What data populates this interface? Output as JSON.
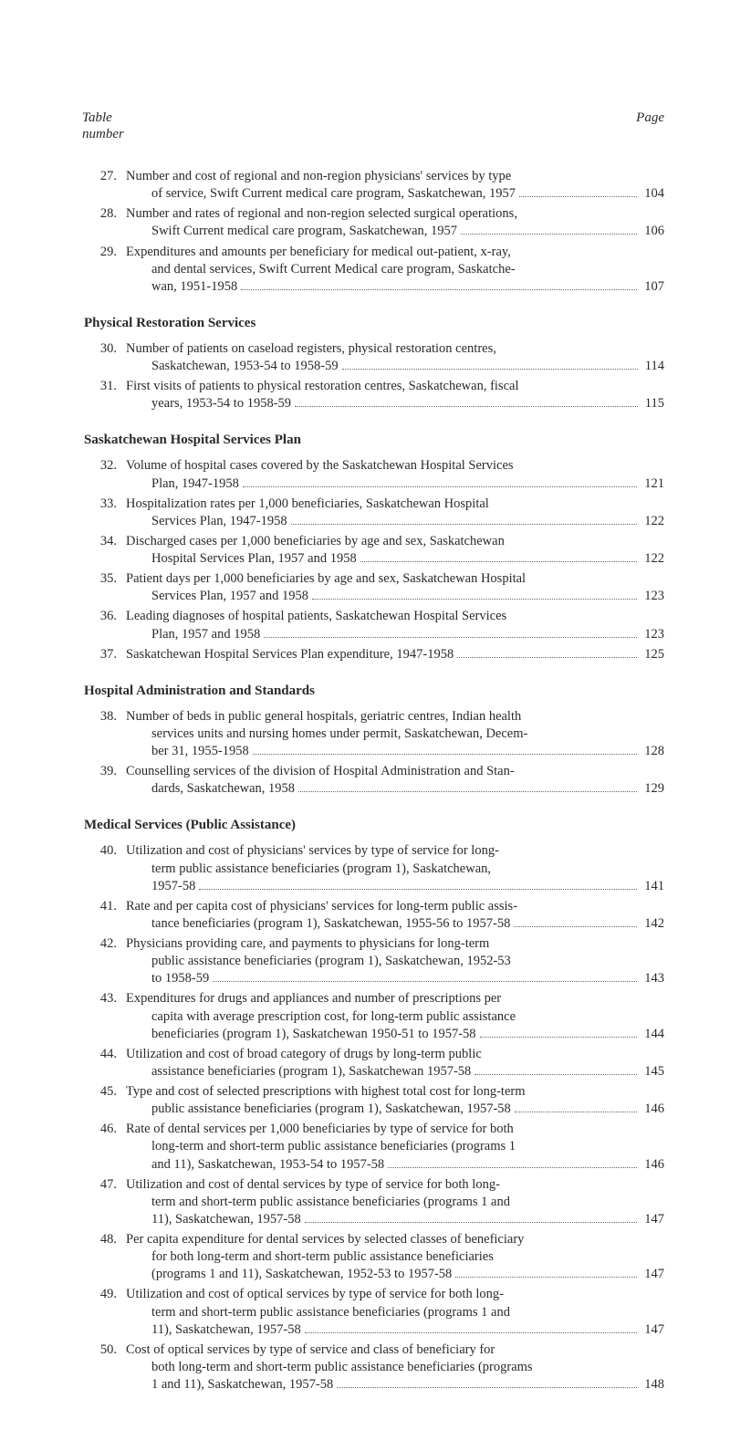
{
  "header": {
    "left_top": "Table",
    "left_bottom": "number",
    "right": "Page"
  },
  "sections": [
    {
      "heading": null,
      "entries": [
        {
          "num": "27.",
          "lines": [
            "Number and cost of regional and non-region physicians' services by type",
            "of service, Swift Current medical care program, Saskatchewan, 1957"
          ],
          "page": "104"
        },
        {
          "num": "28.",
          "lines": [
            "Number and rates of regional and non-region selected surgical operations,",
            "Swift Current medical care program, Saskatchewan, 1957"
          ],
          "page": "106"
        },
        {
          "num": "29.",
          "lines": [
            "Expenditures and amounts per beneficiary for medical out-patient, x-ray,",
            "and dental services, Swift Current Medical care program, Saskatche-",
            "wan, 1951-1958"
          ],
          "page": "107"
        }
      ]
    },
    {
      "heading": "Physical Restoration Services",
      "entries": [
        {
          "num": "30.",
          "lines": [
            "Number of patients on caseload registers, physical restoration centres,",
            "Saskatchewan, 1953-54 to 1958-59"
          ],
          "page": "114"
        },
        {
          "num": "31.",
          "lines": [
            "First visits of patients to physical restoration centres, Saskatchewan, fiscal",
            "years, 1953-54 to 1958-59"
          ],
          "page": "115"
        }
      ]
    },
    {
      "heading": "Saskatchewan Hospital Services Plan",
      "entries": [
        {
          "num": "32.",
          "lines": [
            "Volume of hospital cases covered by the Saskatchewan Hospital Services",
            "Plan, 1947-1958"
          ],
          "page": "121"
        },
        {
          "num": "33.",
          "lines": [
            "Hospitalization rates per 1,000 beneficiaries, Saskatchewan Hospital",
            "Services Plan, 1947-1958"
          ],
          "page": "122"
        },
        {
          "num": "34.",
          "lines": [
            "Discharged cases per 1,000 beneficiaries by age and sex, Saskatchewan",
            "Hospital Services Plan, 1957 and 1958"
          ],
          "page": "122"
        },
        {
          "num": "35.",
          "lines": [
            "Patient days per 1,000 beneficiaries by age and sex, Saskatchewan Hospital",
            "Services Plan, 1957 and 1958"
          ],
          "page": "123"
        },
        {
          "num": "36.",
          "lines": [
            "Leading diagnoses of hospital patients, Saskatchewan Hospital Services",
            "Plan, 1957 and 1958"
          ],
          "page": "123"
        },
        {
          "num": "37.",
          "lines": [
            "Saskatchewan Hospital Services Plan expenditure, 1947-1958"
          ],
          "page": "125"
        }
      ]
    },
    {
      "heading": "Hospital Administration and Standards",
      "entries": [
        {
          "num": "38.",
          "lines": [
            "Number of beds in public general hospitals, geriatric centres, Indian health",
            "services units and nursing homes under permit, Saskatchewan, Decem-",
            "ber 31, 1955-1958"
          ],
          "page": "128"
        },
        {
          "num": "39.",
          "lines": [
            "Counselling services of the division of Hospital Administration and Stan-",
            "dards, Saskatchewan, 1958"
          ],
          "page": "129"
        }
      ]
    },
    {
      "heading": "Medical Services (Public Assistance)",
      "entries": [
        {
          "num": "40.",
          "lines": [
            "Utilization and cost of physicians' services by type of service for long-",
            "term public assistance beneficiaries (program 1), Saskatchewan,",
            "1957-58"
          ],
          "page": "141"
        },
        {
          "num": "41.",
          "lines": [
            "Rate and per capita cost of physicians' services for long-term public assis-",
            "tance beneficiaries (program 1), Saskatchewan, 1955-56 to 1957-58"
          ],
          "page": "142"
        },
        {
          "num": "42.",
          "lines": [
            "Physicians providing care, and payments to physicians for long-term",
            "public assistance beneficiaries (program 1), Saskatchewan, 1952-53",
            "to 1958-59"
          ],
          "page": "143"
        },
        {
          "num": "43.",
          "lines": [
            "Expenditures for drugs and appliances and number of prescriptions per",
            "capita with average prescription cost, for long-term public assistance",
            "beneficiaries (program 1), Saskatchewan 1950-51 to 1957-58"
          ],
          "page": "144"
        },
        {
          "num": "44.",
          "lines": [
            "Utilization and cost of broad category of drugs by long-term public",
            "assistance beneficiaries (program 1), Saskatchewan 1957-58"
          ],
          "page": "145"
        },
        {
          "num": "45.",
          "lines": [
            "Type and cost of selected prescriptions with highest total cost for long-term",
            "public assistance beneficiaries (program 1), Saskatchewan, 1957-58"
          ],
          "page": "146"
        },
        {
          "num": "46.",
          "lines": [
            "Rate of dental services per 1,000 beneficiaries by type of service for both",
            "long-term and short-term public assistance beneficiaries (programs 1",
            "and 11), Saskatchewan, 1953-54 to 1957-58"
          ],
          "page": "146"
        },
        {
          "num": "47.",
          "lines": [
            "Utilization and cost of dental services by type of service for both long-",
            "term and short-term public assistance beneficiaries (programs 1 and",
            "11), Saskatchewan, 1957-58"
          ],
          "page": "147"
        },
        {
          "num": "48.",
          "lines": [
            "Per capita expenditure for dental services by selected classes of beneficiary",
            "for both long-term and short-term public assistance beneficiaries",
            "(programs 1 and 11), Saskatchewan, 1952-53 to 1957-58"
          ],
          "page": "147"
        },
        {
          "num": "49.",
          "lines": [
            "Utilization and cost of optical services by type of service for both long-",
            "term and short-term public assistance beneficiaries (programs 1 and",
            "11), Saskatchewan, 1957-58"
          ],
          "page": "147"
        },
        {
          "num": "50.",
          "lines": [
            "Cost of optical services by type of service and class of beneficiary for",
            "both long-term and short-term public assistance beneficiaries (programs",
            "1 and 11), Saskatchewan, 1957-58"
          ],
          "page": "148"
        }
      ]
    }
  ]
}
